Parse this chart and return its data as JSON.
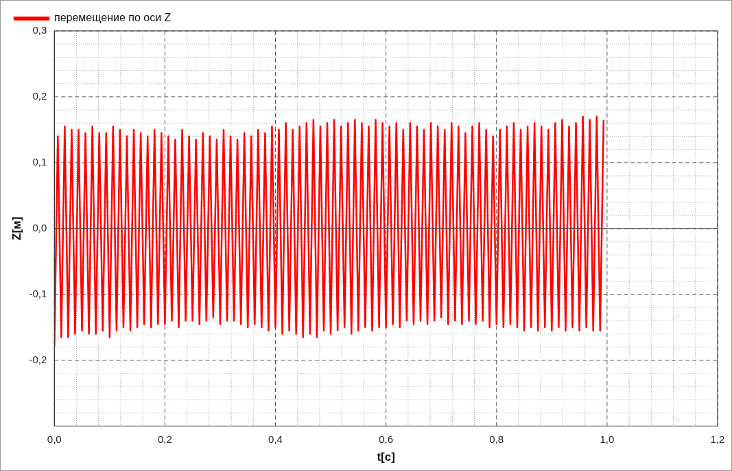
{
  "chart_data": {
    "type": "line",
    "xlabel": "t[c]",
    "ylabel": "Z[м]",
    "x": [
      0,
      0.00625,
      0.0125,
      0.01875,
      0.025,
      0.03125,
      0.0375,
      0.04375,
      0.05,
      0.05625,
      0.0625,
      0.06875,
      0.075,
      0.08125,
      0.0875,
      0.09375,
      0.1,
      0.10625,
      0.1125,
      0.11875,
      0.125,
      0.13125,
      0.1375,
      0.14375,
      0.15,
      0.15625,
      0.1625,
      0.16875,
      0.175,
      0.18125,
      0.1875,
      0.19375,
      0.2,
      0.20625,
      0.2125,
      0.21875,
      0.225,
      0.23125,
      0.2375,
      0.24375,
      0.25,
      0.25625,
      0.2625,
      0.26875,
      0.275,
      0.28125,
      0.2875,
      0.29375,
      0.3,
      0.30625,
      0.3125,
      0.31875,
      0.325,
      0.33125,
      0.3375,
      0.34375,
      0.35,
      0.35625,
      0.3625,
      0.36875,
      0.375,
      0.38125,
      0.3875,
      0.39375,
      0.4,
      0.40625,
      0.4125,
      0.41875,
      0.425,
      0.43125,
      0.4375,
      0.44375,
      0.45,
      0.45625,
      0.4625,
      0.46875,
      0.475,
      0.48125,
      0.4875,
      0.49375,
      0.5,
      0.50625,
      0.5125,
      0.51875,
      0.525,
      0.53125,
      0.5375,
      0.54375,
      0.55,
      0.55625,
      0.5625,
      0.56875,
      0.575,
      0.58125,
      0.5875,
      0.59375,
      0.6,
      0.60625,
      0.6125,
      0.61875,
      0.625,
      0.63125,
      0.6375,
      0.64375,
      0.65,
      0.65625,
      0.6625,
      0.66875,
      0.675,
      0.68125,
      0.6875,
      0.69375,
      0.7,
      0.70625,
      0.7125,
      0.71875,
      0.725,
      0.73125,
      0.7375,
      0.74375,
      0.75,
      0.75625,
      0.7625,
      0.76875,
      0.775,
      0.78125,
      0.7875,
      0.79375,
      0.8,
      0.80625,
      0.8125,
      0.81875,
      0.825,
      0.83125,
      0.8375,
      0.84375,
      0.85,
      0.85625,
      0.8625,
      0.86875,
      0.875,
      0.88125,
      0.8875,
      0.89375,
      0.9,
      0.90625,
      0.9125,
      0.91875,
      0.925,
      0.93125,
      0.9375,
      0.94375,
      0.95,
      0.95625,
      0.9625,
      0.96875,
      0.975,
      0.98125,
      0.9875,
      0.99375
    ],
    "series": [
      {
        "name": "перемещение по оси Z",
        "color": "#ff0000",
        "values": [
          -0.18,
          0.14,
          -0.165,
          0.155,
          -0.165,
          0.15,
          -0.16,
          0.15,
          -0.155,
          0.145,
          -0.16,
          0.155,
          -0.16,
          0.145,
          -0.155,
          0.145,
          -0.165,
          0.155,
          -0.155,
          0.15,
          -0.15,
          0.14,
          -0.155,
          0.15,
          -0.15,
          0.145,
          -0.145,
          0.14,
          -0.15,
          0.15,
          -0.145,
          0.145,
          -0.145,
          0.14,
          -0.14,
          0.135,
          -0.15,
          0.15,
          -0.14,
          0.14,
          -0.14,
          0.135,
          -0.145,
          0.145,
          -0.14,
          0.14,
          -0.135,
          0.135,
          -0.145,
          0.15,
          -0.14,
          0.14,
          -0.14,
          0.135,
          -0.145,
          0.145,
          -0.15,
          0.14,
          -0.145,
          0.15,
          -0.15,
          0.145,
          -0.155,
          0.155,
          -0.15,
          0.15,
          -0.16,
          0.16,
          -0.155,
          0.15,
          -0.16,
          0.155,
          -0.165,
          0.16,
          -0.16,
          0.165,
          -0.165,
          0.155,
          -0.155,
          0.16,
          -0.16,
          0.165,
          -0.155,
          0.155,
          -0.15,
          0.16,
          -0.16,
          0.165,
          -0.155,
          0.16,
          -0.15,
          0.155,
          -0.155,
          0.165,
          -0.15,
          0.16,
          -0.15,
          0.155,
          -0.145,
          0.16,
          -0.15,
          0.15,
          -0.14,
          0.16,
          -0.145,
          0.155,
          -0.14,
          0.15,
          -0.145,
          0.16,
          -0.14,
          0.155,
          -0.135,
          0.15,
          -0.145,
          0.16,
          -0.14,
          0.155,
          -0.145,
          0.145,
          -0.14,
          0.155,
          -0.145,
          0.16,
          -0.14,
          0.15,
          -0.15,
          0.14,
          -0.145,
          0.15,
          -0.15,
          0.155,
          -0.145,
          0.16,
          -0.15,
          0.15,
          -0.155,
          0.155,
          -0.15,
          0.16,
          -0.155,
          0.155,
          -0.15,
          0.15,
          -0.155,
          0.16,
          -0.15,
          0.165,
          -0.155,
          0.155,
          -0.15,
          0.16,
          -0.155,
          0.17,
          -0.15,
          0.165,
          -0.155,
          0.17,
          -0.155,
          0.165
        ]
      }
    ],
    "xlim": [
      0,
      1.2
    ],
    "xticks": [
      {
        "value": 0,
        "label": "0,0"
      },
      {
        "value": 0.04,
        "label": null
      },
      {
        "value": 0.08,
        "label": null
      },
      {
        "value": 0.12,
        "label": null
      },
      {
        "value": 0.16,
        "label": null
      },
      {
        "value": 0.2,
        "label": "0,2"
      },
      {
        "value": 0.24,
        "label": null
      },
      {
        "value": 0.28,
        "label": null
      },
      {
        "value": 0.32,
        "label": null
      },
      {
        "value": 0.36,
        "label": null
      },
      {
        "value": 0.4,
        "label": "0,4"
      },
      {
        "value": 0.44,
        "label": null
      },
      {
        "value": 0.48,
        "label": null
      },
      {
        "value": 0.52,
        "label": null
      },
      {
        "value": 0.56,
        "label": null
      },
      {
        "value": 0.6,
        "label": "0,6"
      },
      {
        "value": 0.64,
        "label": null
      },
      {
        "value": 0.68,
        "label": null
      },
      {
        "value": 0.72,
        "label": null
      },
      {
        "value": 0.76,
        "label": null
      },
      {
        "value": 0.8,
        "label": "0,8"
      },
      {
        "value": 0.84,
        "label": null
      },
      {
        "value": 0.88,
        "label": null
      },
      {
        "value": 0.92,
        "label": null
      },
      {
        "value": 0.96,
        "label": null
      },
      {
        "value": 1.0,
        "label": "1,0"
      },
      {
        "value": 1.04,
        "label": null
      },
      {
        "value": 1.08,
        "label": null
      },
      {
        "value": 1.12,
        "label": null
      },
      {
        "value": 1.16,
        "label": null
      },
      {
        "value": 1.2,
        "label": "1,2"
      }
    ],
    "ylim": [
      -0.3,
      0.3
    ],
    "yticks": [
      {
        "value": -0.3,
        "label": null
      },
      {
        "value": -0.28,
        "label": null
      },
      {
        "value": -0.26,
        "label": null
      },
      {
        "value": -0.24,
        "label": null
      },
      {
        "value": -0.22,
        "label": null
      },
      {
        "value": -0.2,
        "label": "-0,2"
      },
      {
        "value": -0.18,
        "label": null
      },
      {
        "value": -0.16,
        "label": null
      },
      {
        "value": -0.14,
        "label": null
      },
      {
        "value": -0.12,
        "label": null
      },
      {
        "value": -0.1,
        "label": "-0,1"
      },
      {
        "value": -0.08,
        "label": null
      },
      {
        "value": -0.06,
        "label": null
      },
      {
        "value": -0.04,
        "label": null
      },
      {
        "value": -0.02,
        "label": null
      },
      {
        "value": 0,
        "label": "0,0"
      },
      {
        "value": 0.02,
        "label": null
      },
      {
        "value": 0.04,
        "label": null
      },
      {
        "value": 0.06,
        "label": null
      },
      {
        "value": 0.08,
        "label": null
      },
      {
        "value": 0.1,
        "label": "0,1"
      },
      {
        "value": 0.12,
        "label": null
      },
      {
        "value": 0.14,
        "label": null
      },
      {
        "value": 0.16,
        "label": null
      },
      {
        "value": 0.18,
        "label": null
      },
      {
        "value": 0.2,
        "label": "0,2"
      },
      {
        "value": 0.22,
        "label": null
      },
      {
        "value": 0.24,
        "label": null
      },
      {
        "value": 0.26,
        "label": null
      },
      {
        "value": 0.28,
        "label": null
      },
      {
        "value": 0.3,
        "label": "0,3"
      }
    ],
    "ref_lines": [
      {
        "axis": "y",
        "value": 0,
        "color": "#404040"
      }
    ],
    "grid": true,
    "legend": "top left",
    "marker": "none",
    "line_style": "solid"
  }
}
